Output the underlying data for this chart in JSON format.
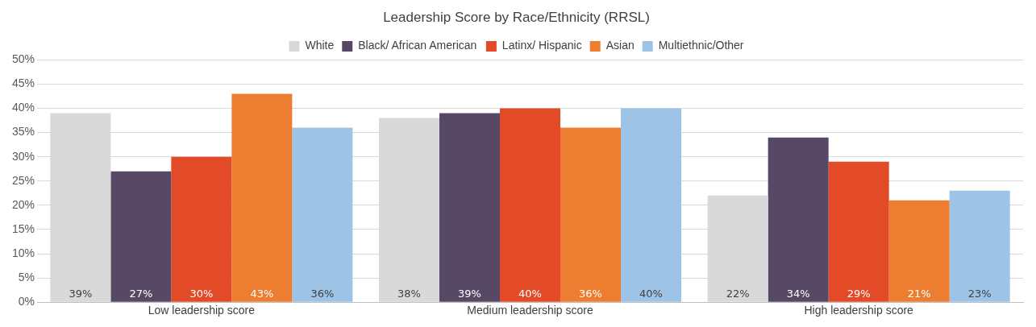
{
  "chart_data": {
    "type": "bar",
    "title": "Leadership Score by Race/Ethnicity (RRSL)",
    "categories": [
      "Low leadership score",
      "Medium leadership score",
      "High leadership score"
    ],
    "series": [
      {
        "name": "White",
        "color": "#d9d9d9",
        "values": [
          39,
          38,
          22
        ],
        "value_labels": [
          "39%",
          "38%",
          "22%"
        ]
      },
      {
        "name": "Black/ African American",
        "color": "#574866",
        "values": [
          27,
          39,
          34
        ],
        "value_labels": [
          "27%",
          "39%",
          "34%"
        ]
      },
      {
        "name": "Latinx/ Hispanic",
        "color": "#e24a28",
        "values": [
          30,
          40,
          29
        ],
        "value_labels": [
          "30%",
          "40%",
          "29%"
        ]
      },
      {
        "name": "Asian",
        "color": "#ed7d31",
        "values": [
          43,
          36,
          21
        ],
        "value_labels": [
          "43%",
          "36%",
          "21%"
        ]
      },
      {
        "name": "Multiethnic/Other",
        "color": "#9dc3e6",
        "values": [
          36,
          40,
          23
        ],
        "value_labels": [
          "36%",
          "40%",
          "23%"
        ]
      }
    ],
    "ylim": [
      0,
      50
    ],
    "yticks": [
      {
        "value": 0,
        "label": "0%"
      },
      {
        "value": 5,
        "label": "5%"
      },
      {
        "value": 10,
        "label": "10%"
      },
      {
        "value": 15,
        "label": "15%"
      },
      {
        "value": 20,
        "label": "20%"
      },
      {
        "value": 25,
        "label": "25%"
      },
      {
        "value": 30,
        "label": "30%"
      },
      {
        "value": 35,
        "label": "35%"
      },
      {
        "value": 40,
        "label": "40%"
      },
      {
        "value": 45,
        "label": "45%"
      },
      {
        "value": 50,
        "label": "50%"
      }
    ],
    "grid": "y",
    "legend": "top"
  }
}
